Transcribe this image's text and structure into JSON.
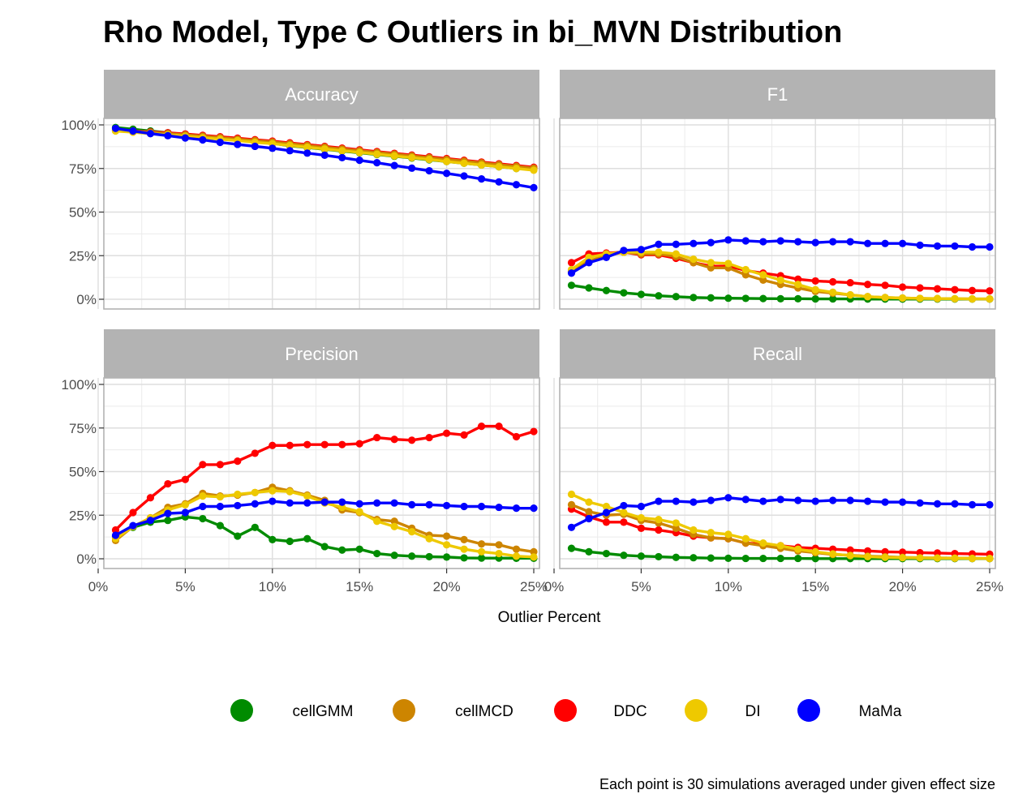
{
  "chart_data": {
    "type": "line",
    "title": "Rho Model, Type C Outliers in bi_MVN Distribution",
    "xlabel": "Outlier Percent",
    "ylabel": "",
    "caption": "Each point is 30 simulations averaged under given effect size",
    "x": [
      1,
      2,
      3,
      4,
      5,
      6,
      7,
      8,
      9,
      10,
      11,
      12,
      13,
      14,
      15,
      16,
      17,
      18,
      19,
      20,
      21,
      22,
      23,
      24,
      25
    ],
    "xlim": [
      0,
      25
    ],
    "ylim": [
      0,
      1
    ],
    "x_ticks": [
      0,
      5,
      10,
      15,
      20,
      25
    ],
    "x_tick_labels": [
      "0%",
      "5%",
      "10%",
      "15%",
      "20%",
      "25%"
    ],
    "y_ticks": [
      0,
      0.25,
      0.5,
      0.75,
      1
    ],
    "y_tick_labels": [
      "0%",
      "25%",
      "50%",
      "75%",
      "100%"
    ],
    "grid": true,
    "legend_position": "bottom",
    "legend": [
      {
        "name": "cellGMM",
        "color": "#008B00"
      },
      {
        "name": "cellMCD",
        "color": "#CD8500"
      },
      {
        "name": "DDC",
        "color": "#FF0000"
      },
      {
        "name": "DI",
        "color": "#EEC900"
      },
      {
        "name": "MaMa",
        "color": "#0000FF"
      }
    ],
    "panels": [
      {
        "name": "Accuracy",
        "series": [
          {
            "name": "cellGMM",
            "color": "#008B00",
            "values": [
              0.985,
              0.975,
              0.965,
              0.955,
              0.945,
              0.935,
              0.925,
              0.915,
              0.905,
              0.895,
              0.88,
              0.87,
              0.86,
              0.85,
              0.84,
              0.83,
              0.82,
              0.81,
              0.8,
              0.79,
              0.78,
              0.77,
              0.76,
              0.75,
              0.745
            ]
          },
          {
            "name": "DDC",
            "color": "#FF0000",
            "values": [
              0.97,
              0.965,
              0.96,
              0.955,
              0.948,
              0.94,
              0.932,
              0.924,
              0.915,
              0.907,
              0.897,
              0.887,
              0.877,
              0.867,
              0.857,
              0.847,
              0.837,
              0.827,
              0.817,
              0.807,
              0.797,
              0.787,
              0.777,
              0.767,
              0.757
            ]
          },
          {
            "name": "cellMCD",
            "color": "#CD8500",
            "values": [
              0.97,
              0.963,
              0.957,
              0.95,
              0.943,
              0.935,
              0.927,
              0.918,
              0.91,
              0.902,
              0.892,
              0.882,
              0.872,
              0.862,
              0.852,
              0.842,
              0.832,
              0.822,
              0.812,
              0.802,
              0.792,
              0.782,
              0.772,
              0.762,
              0.752
            ]
          },
          {
            "name": "DI",
            "color": "#EEC900",
            "values": [
              0.965,
              0.958,
              0.95,
              0.943,
              0.935,
              0.927,
              0.918,
              0.91,
              0.9,
              0.892,
              0.882,
              0.872,
              0.862,
              0.852,
              0.842,
              0.832,
              0.822,
              0.812,
              0.802,
              0.79,
              0.78,
              0.77,
              0.76,
              0.75,
              0.74
            ]
          },
          {
            "name": "MaMa",
            "color": "#0000FF",
            "values": [
              0.98,
              0.965,
              0.95,
              0.938,
              0.925,
              0.914,
              0.9,
              0.888,
              0.877,
              0.866,
              0.852,
              0.838,
              0.826,
              0.812,
              0.797,
              0.783,
              0.767,
              0.752,
              0.737,
              0.722,
              0.707,
              0.69,
              0.673,
              0.657,
              0.64
            ]
          }
        ]
      },
      {
        "name": "F1",
        "series": [
          {
            "name": "cellGMM",
            "color": "#008B00",
            "values": [
              0.08,
              0.065,
              0.05,
              0.037,
              0.028,
              0.02,
              0.015,
              0.01,
              0.008,
              0.006,
              0.005,
              0.004,
              0.003,
              0.003,
              0.002,
              0.002,
              0.002,
              0.001,
              0.001,
              0.001,
              0.001,
              0.001,
              0.001,
              0.001,
              0.001
            ]
          },
          {
            "name": "DDC",
            "color": "#FF0000",
            "values": [
              0.21,
              0.26,
              0.265,
              0.27,
              0.255,
              0.255,
              0.235,
              0.21,
              0.19,
              0.19,
              0.165,
              0.15,
              0.135,
              0.115,
              0.105,
              0.1,
              0.095,
              0.085,
              0.08,
              0.07,
              0.065,
              0.06,
              0.055,
              0.05,
              0.048
            ]
          },
          {
            "name": "cellMCD",
            "color": "#CD8500",
            "values": [
              0.16,
              0.22,
              0.25,
              0.27,
              0.26,
              0.26,
              0.245,
              0.21,
              0.18,
              0.18,
              0.14,
              0.11,
              0.085,
              0.065,
              0.045,
              0.035,
              0.025,
              0.015,
              0.01,
              0.007,
              0.005,
              0.004,
              0.003,
              0.002,
              0.002
            ]
          },
          {
            "name": "DI",
            "color": "#EEC900",
            "values": [
              0.17,
              0.24,
              0.26,
              0.27,
              0.27,
              0.27,
              0.26,
              0.23,
              0.21,
              0.205,
              0.17,
              0.14,
              0.11,
              0.085,
              0.055,
              0.04,
              0.025,
              0.015,
              0.01,
              0.007,
              0.005,
              0.004,
              0.003,
              0.002,
              0.002
            ]
          },
          {
            "name": "MaMa",
            "color": "#0000FF",
            "values": [
              0.15,
              0.21,
              0.24,
              0.28,
              0.285,
              0.315,
              0.315,
              0.32,
              0.325,
              0.34,
              0.335,
              0.33,
              0.335,
              0.33,
              0.325,
              0.33,
              0.33,
              0.32,
              0.32,
              0.32,
              0.31,
              0.305,
              0.305,
              0.3,
              0.3
            ]
          }
        ]
      },
      {
        "name": "Precision",
        "series": [
          {
            "name": "cellGMM",
            "color": "#008B00",
            "values": [
              0.13,
              0.18,
              0.21,
              0.22,
              0.24,
              0.23,
              0.19,
              0.13,
              0.18,
              0.11,
              0.1,
              0.115,
              0.07,
              0.05,
              0.055,
              0.03,
              0.02,
              0.015,
              0.012,
              0.01,
              0.005,
              0.004,
              0.004,
              0.003,
              0.003
            ]
          },
          {
            "name": "DDC",
            "color": "#FF0000",
            "values": [
              0.165,
              0.265,
              0.35,
              0.43,
              0.455,
              0.54,
              0.54,
              0.56,
              0.605,
              0.65,
              0.65,
              0.655,
              0.655,
              0.655,
              0.66,
              0.695,
              0.685,
              0.68,
              0.695,
              0.72,
              0.71,
              0.76,
              0.76,
              0.7,
              0.73
            ]
          },
          {
            "name": "cellMCD",
            "color": "#CD8500",
            "values": [
              0.105,
              0.185,
              0.235,
              0.295,
              0.315,
              0.375,
              0.36,
              0.365,
              0.38,
              0.41,
              0.39,
              0.365,
              0.335,
              0.28,
              0.265,
              0.225,
              0.215,
              0.175,
              0.135,
              0.13,
              0.11,
              0.085,
              0.08,
              0.055,
              0.04
            ]
          },
          {
            "name": "DI",
            "color": "#EEC900",
            "values": [
              0.115,
              0.185,
              0.235,
              0.28,
              0.31,
              0.36,
              0.355,
              0.37,
              0.38,
              0.39,
              0.385,
              0.36,
              0.32,
              0.295,
              0.27,
              0.215,
              0.185,
              0.155,
              0.115,
              0.08,
              0.055,
              0.04,
              0.03,
              0.015,
              0.01
            ]
          },
          {
            "name": "MaMa",
            "color": "#0000FF",
            "values": [
              0.135,
              0.19,
              0.22,
              0.26,
              0.265,
              0.3,
              0.3,
              0.305,
              0.315,
              0.33,
              0.32,
              0.32,
              0.325,
              0.325,
              0.315,
              0.32,
              0.32,
              0.31,
              0.31,
              0.305,
              0.3,
              0.3,
              0.295,
              0.29,
              0.29
            ]
          }
        ]
      },
      {
        "name": "Recall",
        "series": [
          {
            "name": "cellGMM",
            "color": "#008B00",
            "values": [
              0.06,
              0.04,
              0.03,
              0.02,
              0.015,
              0.012,
              0.008,
              0.006,
              0.004,
              0.003,
              0.002,
              0.002,
              0.002,
              0.002,
              0.001,
              0.001,
              0.001,
              0.001,
              0.001,
              0.001,
              0.001,
              0.001,
              0.001,
              0.001,
              0.001
            ]
          },
          {
            "name": "DDC",
            "color": "#FF0000",
            "values": [
              0.285,
              0.24,
              0.21,
              0.21,
              0.175,
              0.165,
              0.15,
              0.13,
              0.12,
              0.115,
              0.09,
              0.085,
              0.075,
              0.065,
              0.06,
              0.055,
              0.05,
              0.045,
              0.04,
              0.038,
              0.035,
              0.033,
              0.03,
              0.028,
              0.026
            ]
          },
          {
            "name": "cellMCD",
            "color": "#CD8500",
            "values": [
              0.31,
              0.27,
              0.25,
              0.255,
              0.22,
              0.205,
              0.175,
              0.14,
              0.12,
              0.115,
              0.09,
              0.075,
              0.06,
              0.045,
              0.035,
              0.025,
              0.02,
              0.015,
              0.012,
              0.008,
              0.006,
              0.005,
              0.004,
              0.003,
              0.002
            ]
          },
          {
            "name": "DI",
            "color": "#EEC900",
            "values": [
              0.37,
              0.325,
              0.3,
              0.265,
              0.235,
              0.225,
              0.205,
              0.165,
              0.15,
              0.14,
              0.115,
              0.09,
              0.075,
              0.055,
              0.04,
              0.028,
              0.018,
              0.012,
              0.008,
              0.006,
              0.005,
              0.004,
              0.003,
              0.002,
              0.002
            ]
          },
          {
            "name": "MaMa",
            "color": "#0000FF",
            "values": [
              0.18,
              0.23,
              0.265,
              0.305,
              0.3,
              0.33,
              0.33,
              0.325,
              0.335,
              0.35,
              0.34,
              0.33,
              0.34,
              0.335,
              0.33,
              0.335,
              0.335,
              0.33,
              0.325,
              0.325,
              0.32,
              0.315,
              0.315,
              0.31,
              0.31
            ]
          }
        ]
      }
    ]
  }
}
